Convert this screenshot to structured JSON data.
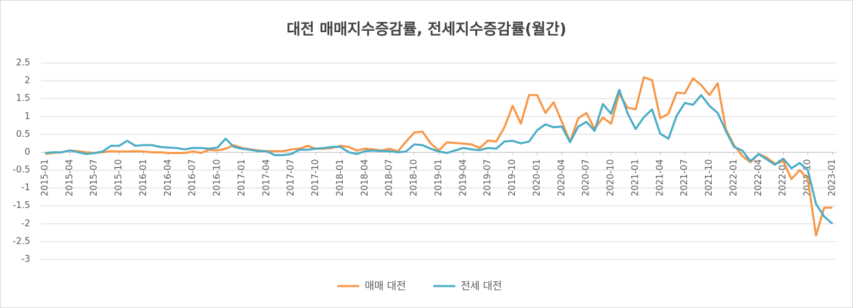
{
  "chart_data": {
    "type": "line",
    "title": "대전 매매지수증감률, 전세지수증감률(월간)",
    "categories": [
      "2015-01",
      null,
      null,
      "2015-04",
      null,
      null,
      "2015-07",
      null,
      null,
      "2015-10",
      null,
      null,
      "2016-01",
      null,
      null,
      "2016-04",
      null,
      null,
      "2016-07",
      null,
      null,
      "2016-10",
      null,
      null,
      "2017-01",
      null,
      null,
      "2017-04",
      null,
      null,
      "2017-07",
      null,
      null,
      "2017-10",
      null,
      null,
      "2018-01",
      null,
      null,
      "2018-04",
      null,
      null,
      "2018-07",
      null,
      null,
      "2018-10",
      null,
      null,
      "2019-01",
      null,
      null,
      "2019-04",
      null,
      null,
      "2019-07",
      null,
      null,
      "2019-10",
      null,
      null,
      "2020-01",
      null,
      null,
      "2020-04",
      null,
      null,
      "2020-07",
      null,
      null,
      "2020-10",
      null,
      null,
      "2021-01",
      null,
      null,
      "2021-04",
      null,
      null,
      "2021-07",
      null,
      null,
      "2021-10",
      null,
      null,
      "2022-01",
      null,
      null,
      "2022-04",
      null,
      null,
      "2022-07",
      null,
      null,
      "2022-10",
      null,
      null,
      "2023-01"
    ],
    "series": [
      {
        "name": "매매 대전",
        "color": "#f79646",
        "values": [
          -0.05,
          -0.02,
          0.0,
          0.05,
          0.03,
          0.0,
          -0.02,
          0.0,
          0.03,
          0.02,
          0.02,
          0.03,
          0.02,
          0.0,
          0.0,
          -0.02,
          -0.02,
          -0.02,
          0.02,
          -0.02,
          0.07,
          0.05,
          0.1,
          0.2,
          0.12,
          0.08,
          0.05,
          0.03,
          0.03,
          0.03,
          0.08,
          0.1,
          0.18,
          0.1,
          0.1,
          0.12,
          0.18,
          0.15,
          0.05,
          0.1,
          0.08,
          0.05,
          0.1,
          0.02,
          0.3,
          0.55,
          0.58,
          0.25,
          0.05,
          0.28,
          0.26,
          0.24,
          0.22,
          0.12,
          0.33,
          0.3,
          0.7,
          1.3,
          0.8,
          1.6,
          1.6,
          1.1,
          1.4,
          0.85,
          0.3,
          0.95,
          1.1,
          0.65,
          0.97,
          0.8,
          1.65,
          1.25,
          1.2,
          2.1,
          2.02,
          0.95,
          1.08,
          1.67,
          1.65,
          2.07,
          1.88,
          1.6,
          1.93,
          0.65,
          0.2,
          -0.1,
          -0.28,
          -0.05,
          -0.15,
          -0.32,
          -0.25,
          -0.75,
          -0.5,
          -0.75,
          -2.33,
          -1.55,
          -1.55
        ]
      },
      {
        "name": "전세 대전",
        "color": "#4bacc6",
        "values": [
          -0.02,
          0.0,
          0.0,
          0.05,
          0.0,
          -0.05,
          -0.02,
          0.02,
          0.18,
          0.18,
          0.32,
          0.18,
          0.2,
          0.2,
          0.15,
          0.13,
          0.12,
          0.08,
          0.12,
          0.12,
          0.1,
          0.13,
          0.38,
          0.15,
          0.1,
          0.07,
          0.03,
          0.03,
          -0.08,
          -0.08,
          -0.05,
          0.07,
          0.07,
          0.1,
          0.12,
          0.15,
          0.15,
          0.0,
          -0.05,
          0.03,
          0.05,
          0.03,
          0.03,
          0.0,
          0.02,
          0.22,
          0.2,
          0.1,
          0.02,
          -0.02,
          0.05,
          0.12,
          0.08,
          0.06,
          0.12,
          0.1,
          0.3,
          0.32,
          0.25,
          0.3,
          0.62,
          0.78,
          0.7,
          0.72,
          0.28,
          0.72,
          0.85,
          0.6,
          1.35,
          1.08,
          1.75,
          1.1,
          0.65,
          0.98,
          1.2,
          0.52,
          0.38,
          1.02,
          1.38,
          1.33,
          1.6,
          1.3,
          1.1,
          0.6,
          0.15,
          0.05,
          -0.25,
          -0.05,
          -0.2,
          -0.35,
          -0.18,
          -0.45,
          -0.3,
          -0.5,
          -1.45,
          -1.8,
          -2.0
        ]
      }
    ],
    "ylim": [
      -3,
      2.5
    ],
    "yticks": [
      -3,
      -2.5,
      -2,
      -1.5,
      -1,
      -0.5,
      0,
      0.5,
      1,
      1.5,
      2,
      2.5
    ],
    "grid": true,
    "legend": "bottom"
  }
}
